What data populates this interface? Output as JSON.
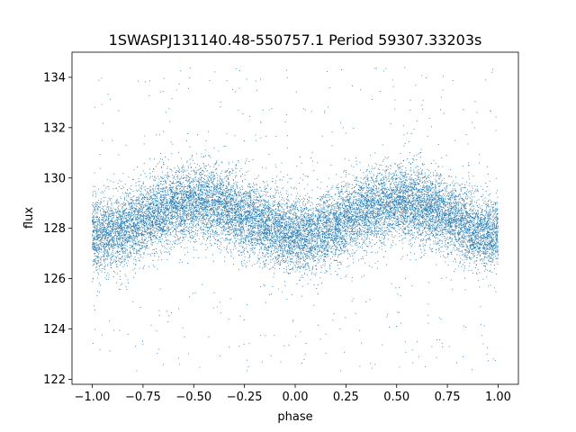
{
  "chart_data": {
    "type": "scatter",
    "title": "1SWASPJ131140.48-550757.1 Period 59307.33203s",
    "xlabel": "phase",
    "ylabel": "flux",
    "xlim": [
      -1.1,
      1.1
    ],
    "ylim": [
      121.8,
      135.0
    ],
    "xticks": [
      -1.0,
      -0.75,
      -0.5,
      -0.25,
      0.0,
      0.25,
      0.5,
      0.75,
      1.0
    ],
    "xtick_labels": [
      "−1.00",
      "−0.75",
      "−0.50",
      "−0.25",
      "0.00",
      "0.25",
      "0.50",
      "0.75",
      "1.00"
    ],
    "yticks": [
      122,
      124,
      126,
      128,
      130,
      132,
      134
    ],
    "ytick_labels": [
      "122",
      "124",
      "126",
      "128",
      "130",
      "132",
      "134"
    ],
    "grid": false,
    "marker_color": "#1f77b4",
    "phase_range": [
      -1.0,
      1.0
    ],
    "mean_flux": 128.4,
    "amplitude": 0.65,
    "peak_phases": [
      -0.48,
      0.52
    ],
    "trough_phases": [
      -0.85,
      0.05
    ],
    "scatter_sigma": 0.75,
    "n_points": 16000,
    "outlier_range": [
      122.3,
      134.4
    ]
  }
}
